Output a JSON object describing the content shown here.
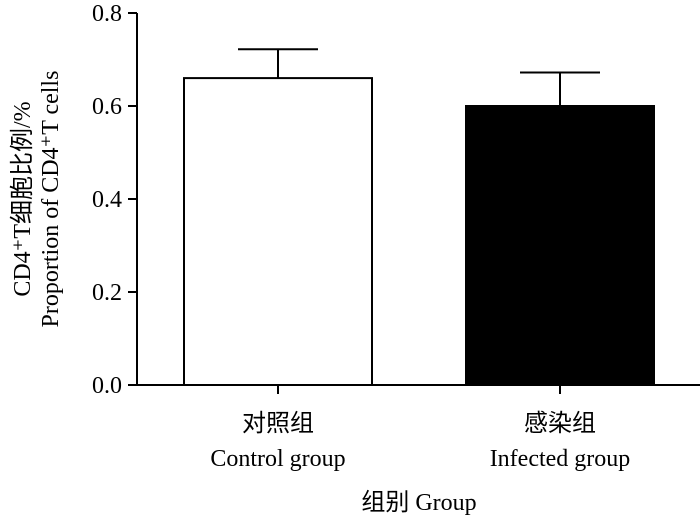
{
  "chart_data": {
    "type": "bar",
    "categories": [
      {
        "zh": "对照组",
        "en": "Control group"
      },
      {
        "zh": "感染组",
        "en": "Infected group"
      }
    ],
    "values": [
      0.66,
      0.6
    ],
    "errors": [
      0.062,
      0.072
    ],
    "bar_colors": [
      "#ffffff",
      "#000000"
    ],
    "ylim": [
      0,
      0.8
    ],
    "yticks": [
      "0.0",
      "0.2",
      "0.4",
      "0.6",
      "0.8"
    ],
    "ylabel_line1": "CD4⁺T细胞比例/%",
    "ylabel_line2": "Proportion of CD4⁺T cells",
    "xlabel": "组别 Group",
    "grid": false,
    "legend": "none"
  }
}
